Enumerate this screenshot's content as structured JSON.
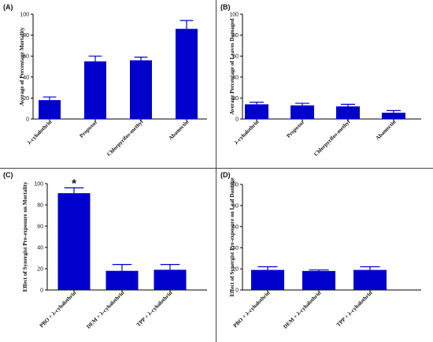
{
  "colors": {
    "bar": "#0000cc",
    "error": "#0000cc",
    "axis": "#000000"
  },
  "chart_data": [
    {
      "type": "bar",
      "panel": "(A)",
      "title": "",
      "xlabel": "",
      "ylabel": "Average of Percentage Mortality",
      "ylim": [
        0,
        100
      ],
      "yticks": [
        "0",
        "20",
        "40",
        "60",
        "80",
        "100"
      ],
      "categories": [
        "λ-cyhalothrin",
        "Propoxur",
        "Chlorpyrifos-methyl",
        "Abamectin"
      ],
      "values": [
        18,
        55,
        56,
        86
      ],
      "errors": [
        3,
        5,
        3,
        8
      ],
      "annotations": []
    },
    {
      "type": "bar",
      "panel": "(B)",
      "title": "",
      "xlabel": "",
      "ylabel": "Average Percentage of Leaves Damaged",
      "ylim": [
        0,
        100
      ],
      "yticks": [
        "0",
        "20",
        "40",
        "60",
        "80",
        "100"
      ],
      "categories": [
        "λ-cyhalothrin",
        "Propoxur",
        "Chlorpyrifos-methyl",
        "Abamectin"
      ],
      "values": [
        14,
        13,
        12,
        6
      ],
      "errors": [
        2,
        2,
        2,
        2
      ],
      "annotations": []
    },
    {
      "type": "bar",
      "panel": "(C)",
      "title": "",
      "xlabel": "",
      "ylabel": "Effect of Synergist Pre-exposure on Mortality",
      "ylim": [
        0,
        100
      ],
      "yticks": [
        "0",
        "20",
        "40",
        "60",
        "80",
        "100"
      ],
      "categories": [
        "PBO + λ-cyhalothrin",
        "DEM + λ-cyhalothrin",
        "TPP + λ-cyhalothrin"
      ],
      "values": [
        91,
        18,
        19
      ],
      "errors": [
        5,
        6,
        5
      ],
      "annotations": [
        {
          "category_index": 0,
          "text": "*"
        }
      ]
    },
    {
      "type": "bar",
      "panel": "(D)",
      "title": "",
      "xlabel": "",
      "ylabel": "Effect of Synergist Pre-exposure on Leaf Damage",
      "ylim": [
        0,
        100
      ],
      "yticks": [
        "0",
        "20",
        "40",
        "60",
        "80",
        "100"
      ],
      "categories": [
        "PBO + λ-cyhalothrin",
        "DEM + λ-cyhalothrin",
        "TPP + λ-cyhalothrin"
      ],
      "values": [
        19,
        18,
        19
      ],
      "errors": [
        3,
        1,
        3
      ],
      "annotations": []
    }
  ]
}
